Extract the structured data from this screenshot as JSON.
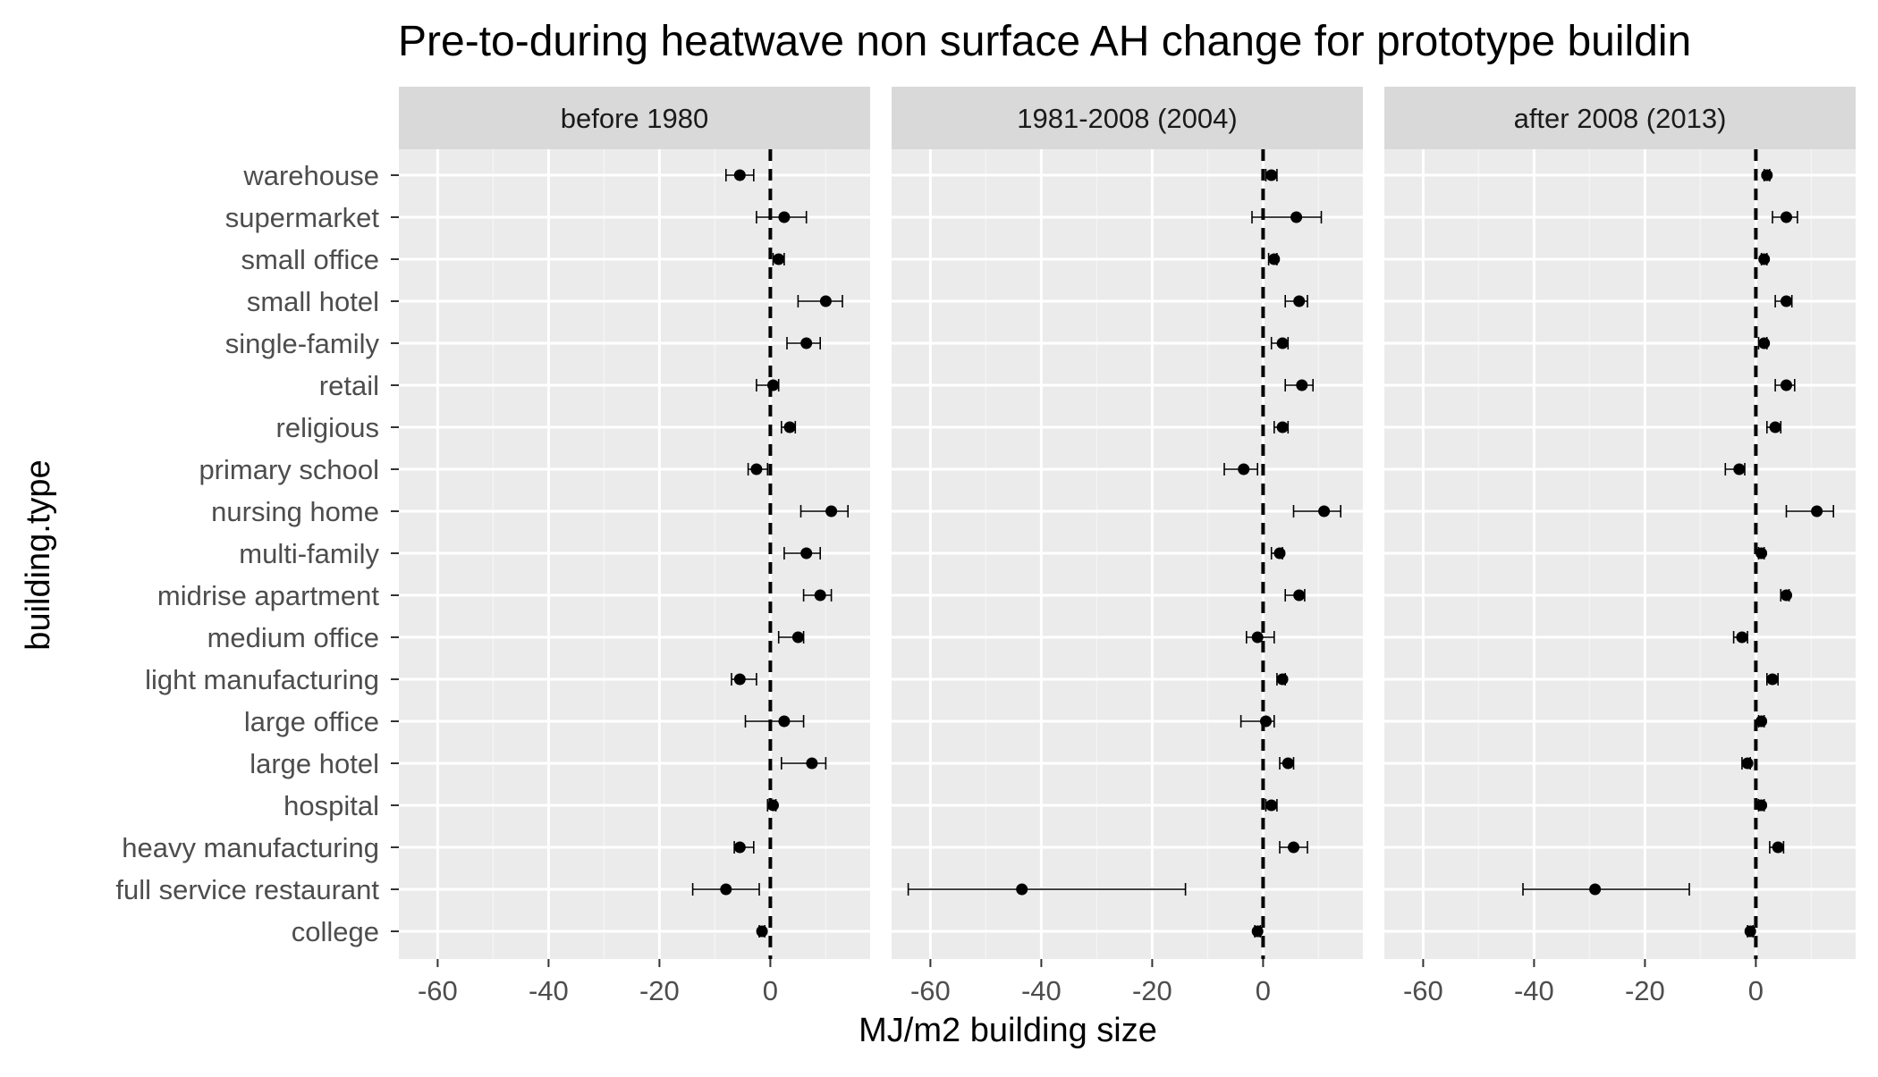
{
  "chart_data": {
    "type": "scatter",
    "title": "Pre-to-during heatwave non surface AH change for prototype buildin",
    "xlabel": "MJ/m2 building size",
    "ylabel": "building.type",
    "xlim": [
      -67,
      18
    ],
    "x_ticks": [
      -60,
      -40,
      -20,
      0
    ],
    "x_tick_labels": [
      "-60",
      "-40",
      "-20",
      "0"
    ],
    "reference_line": 0,
    "grid": true,
    "panel_bg_color": "#ebebeb",
    "strip_bg_color": "#d9d9d9",
    "point_color": "#000000",
    "categories": [
      "warehouse",
      "supermarket",
      "small office",
      "small hotel",
      "single-family",
      "retail",
      "religious",
      "primary school",
      "nursing home",
      "multi-family",
      "midrise apartment",
      "medium office",
      "light manufacturing",
      "large office",
      "large hotel",
      "hospital",
      "heavy manufacturing",
      "full service restaurant",
      "college"
    ],
    "panels": [
      {
        "label": "before 1980",
        "points": [
          {
            "category": "warehouse",
            "value": -5.5,
            "low": -8,
            "high": -3
          },
          {
            "category": "supermarket",
            "value": 2.5,
            "low": -2.5,
            "high": 6.5
          },
          {
            "category": "small office",
            "value": 1.5,
            "low": 0.5,
            "high": 2.5
          },
          {
            "category": "small hotel",
            "value": 10,
            "low": 5,
            "high": 13
          },
          {
            "category": "single-family",
            "value": 6.5,
            "low": 3,
            "high": 9
          },
          {
            "category": "retail",
            "value": 0.5,
            "low": -2.5,
            "high": 1.5
          },
          {
            "category": "religious",
            "value": 3.5,
            "low": 2,
            "high": 4.5
          },
          {
            "category": "primary school",
            "value": -2.5,
            "low": -4,
            "high": -0.5
          },
          {
            "category": "nursing home",
            "value": 11,
            "low": 5.5,
            "high": 14
          },
          {
            "category": "multi-family",
            "value": 6.5,
            "low": 2.5,
            "high": 9
          },
          {
            "category": "midrise apartment",
            "value": 9,
            "low": 6,
            "high": 11
          },
          {
            "category": "medium office",
            "value": 5,
            "low": 1.5,
            "high": 6
          },
          {
            "category": "light manufacturing",
            "value": -5.5,
            "low": -7,
            "high": -2.5
          },
          {
            "category": "large office",
            "value": 2.5,
            "low": -4.5,
            "high": 6
          },
          {
            "category": "large hotel",
            "value": 7.5,
            "low": 2,
            "high": 10
          },
          {
            "category": "hospital",
            "value": 0.5,
            "low": -0.5,
            "high": 1
          },
          {
            "category": "heavy manufacturing",
            "value": -5.5,
            "low": -6.5,
            "high": -3
          },
          {
            "category": "full service restaurant",
            "value": -8,
            "low": -14,
            "high": -2
          },
          {
            "category": "college",
            "value": -1.5,
            "low": -2,
            "high": -1
          }
        ]
      },
      {
        "label": "1981-2008 (2004)",
        "points": [
          {
            "category": "warehouse",
            "value": 1.5,
            "low": 0.5,
            "high": 2.5
          },
          {
            "category": "supermarket",
            "value": 6,
            "low": -2,
            "high": 10.5
          },
          {
            "category": "small office",
            "value": 2,
            "low": 1,
            "high": 2.5
          },
          {
            "category": "small hotel",
            "value": 6.5,
            "low": 4,
            "high": 8
          },
          {
            "category": "single-family",
            "value": 3.5,
            "low": 1.5,
            "high": 4.5
          },
          {
            "category": "retail",
            "value": 7,
            "low": 4,
            "high": 9
          },
          {
            "category": "religious",
            "value": 3.5,
            "low": 2,
            "high": 4.5
          },
          {
            "category": "primary school",
            "value": -3.5,
            "low": -7,
            "high": -1
          },
          {
            "category": "nursing home",
            "value": 11,
            "low": 5.5,
            "high": 14
          },
          {
            "category": "multi-family",
            "value": 3,
            "low": 1.5,
            "high": 3.5
          },
          {
            "category": "midrise apartment",
            "value": 6.5,
            "low": 4,
            "high": 7.5
          },
          {
            "category": "medium office",
            "value": -1,
            "low": -3,
            "high": 2
          },
          {
            "category": "light manufacturing",
            "value": 3.5,
            "low": 2.5,
            "high": 4
          },
          {
            "category": "large office",
            "value": 0.5,
            "low": -4,
            "high": 2
          },
          {
            "category": "large hotel",
            "value": 4.5,
            "low": 3,
            "high": 5.5
          },
          {
            "category": "hospital",
            "value": 1.5,
            "low": 0.5,
            "high": 2.5
          },
          {
            "category": "heavy manufacturing",
            "value": 5.5,
            "low": 3,
            "high": 8
          },
          {
            "category": "full service restaurant",
            "value": -43.5,
            "low": -64,
            "high": -14
          },
          {
            "category": "college",
            "value": -1,
            "low": -1.5,
            "high": -0.5
          }
        ]
      },
      {
        "label": "after 2008 (2013)",
        "points": [
          {
            "category": "warehouse",
            "value": 2,
            "low": 1.5,
            "high": 2.5
          },
          {
            "category": "supermarket",
            "value": 5.5,
            "low": 3,
            "high": 7.5
          },
          {
            "category": "small office",
            "value": 1.5,
            "low": 1,
            "high": 2
          },
          {
            "category": "small hotel",
            "value": 5.5,
            "low": 3.5,
            "high": 6.5
          },
          {
            "category": "single-family",
            "value": 1.5,
            "low": 0.5,
            "high": 2
          },
          {
            "category": "retail",
            "value": 5.5,
            "low": 3.5,
            "high": 7
          },
          {
            "category": "religious",
            "value": 3.5,
            "low": 2,
            "high": 4.5
          },
          {
            "category": "primary school",
            "value": -3,
            "low": -5.5,
            "high": -2
          },
          {
            "category": "nursing home",
            "value": 11,
            "low": 5.5,
            "high": 14
          },
          {
            "category": "multi-family",
            "value": 1,
            "low": 0.5,
            "high": 1.5
          },
          {
            "category": "midrise apartment",
            "value": 5.5,
            "low": 4.5,
            "high": 6
          },
          {
            "category": "medium office",
            "value": -2.5,
            "low": -4,
            "high": -1.5
          },
          {
            "category": "light manufacturing",
            "value": 3,
            "low": 2,
            "high": 4
          },
          {
            "category": "large office",
            "value": 1,
            "low": 0.5,
            "high": 1.5
          },
          {
            "category": "large hotel",
            "value": -1.5,
            "low": -2.5,
            "high": -1
          },
          {
            "category": "hospital",
            "value": 1,
            "low": 0.5,
            "high": 1.5
          },
          {
            "category": "heavy manufacturing",
            "value": 4,
            "low": 2.5,
            "high": 5
          },
          {
            "category": "full service restaurant",
            "value": -29,
            "low": -42,
            "high": -12
          },
          {
            "category": "college",
            "value": -1,
            "low": -1.5,
            "high": -0.5
          }
        ]
      }
    ]
  }
}
